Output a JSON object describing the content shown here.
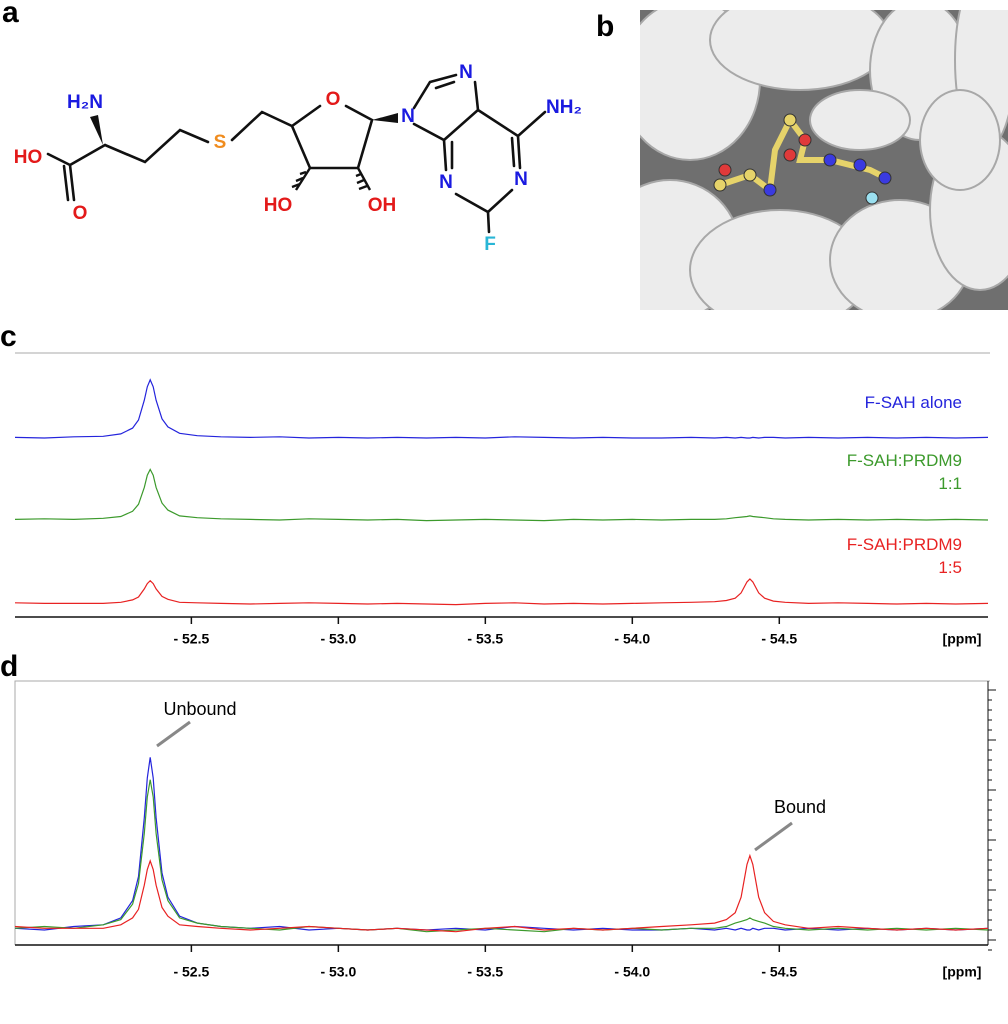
{
  "panel_labels": [
    "a",
    "b",
    "c",
    "d"
  ],
  "structure": {
    "labels": [
      "H₂N",
      "HO",
      "O",
      "S",
      "O",
      "HO",
      "OH",
      "N",
      "N",
      "NH₂",
      "N",
      "N",
      "F"
    ]
  },
  "chart_data": {
    "type": "line",
    "x": [
      -51.9,
      -52.0,
      -52.1,
      -52.2,
      -52.26,
      -52.3,
      -52.32,
      -52.34,
      -52.35,
      -52.36,
      -52.37,
      -52.38,
      -52.4,
      -52.42,
      -52.46,
      -52.52,
      -52.6,
      -52.7,
      -52.8,
      -52.9,
      -53.0,
      -53.1,
      -53.2,
      -53.3,
      -53.4,
      -53.5,
      -53.6,
      -53.7,
      -53.8,
      -53.9,
      -54.0,
      -54.1,
      -54.2,
      -54.28,
      -54.32,
      -54.35,
      -54.37,
      -54.39,
      -54.4,
      -54.41,
      -54.43,
      -54.45,
      -54.48,
      -54.52,
      -54.6,
      -54.7,
      -54.8,
      -54.9,
      -55.0,
      -55.1,
      -55.21
    ],
    "series": [
      {
        "name": "F-SAH alone",
        "color": "#2424dc",
        "values": [
          1,
          0,
          2,
          3,
          7,
          17,
          31,
          65,
          88,
          100,
          88,
          65,
          33,
          19,
          8,
          4,
          2,
          1,
          2,
          0,
          1,
          0,
          1,
          0,
          1,
          0,
          2,
          1,
          0,
          1,
          0,
          0,
          1,
          0,
          1,
          0,
          1,
          0,
          0,
          1,
          0,
          1,
          1,
          0,
          1,
          0,
          1,
          0,
          1,
          0,
          1
        ]
      },
      {
        "name": "F-SAH:PRDM9\n1:1",
        "color": "#3c9a2c",
        "values": [
          1,
          2,
          1,
          3,
          6,
          15,
          27,
          56,
          77,
          87,
          77,
          56,
          29,
          17,
          7,
          4,
          2,
          1,
          0,
          2,
          1,
          0,
          1,
          -1,
          0,
          1,
          0,
          -1,
          1,
          0,
          1,
          0,
          1,
          1,
          2,
          4,
          5,
          6,
          7,
          6,
          5,
          4,
          2,
          1,
          0,
          1,
          0,
          1,
          0,
          1,
          0
        ]
      },
      {
        "name": "F-SAH:PRDM9\n1:5",
        "color": "#e82222",
        "values": [
          2,
          1,
          1,
          1,
          3,
          7,
          12,
          26,
          35,
          40,
          35,
          26,
          13,
          8,
          3,
          2,
          1,
          0,
          1,
          2,
          1,
          0,
          1,
          0,
          -1,
          1,
          2,
          0,
          1,
          0,
          1,
          2,
          3,
          4,
          6,
          10,
          19,
          38,
          43,
          38,
          19,
          10,
          5,
          3,
          1,
          2,
          1,
          0,
          1,
          0,
          1
        ]
      }
    ],
    "xlim": [
      -51.9,
      -55.21
    ],
    "xticks": [
      {
        "value": -52.5,
        "label": "- 52.5"
      },
      {
        "value": -53.0,
        "label": "- 53.0"
      },
      {
        "value": -53.5,
        "label": "- 53.5"
      },
      {
        "value": -54.0,
        "label": "- 54.0"
      },
      {
        "value": -54.5,
        "label": "- 54.5"
      }
    ],
    "ylim": [
      -5,
      105
    ],
    "xlabel": "[ppm]",
    "annotations": [
      "Unbound",
      "Bound"
    ]
  }
}
